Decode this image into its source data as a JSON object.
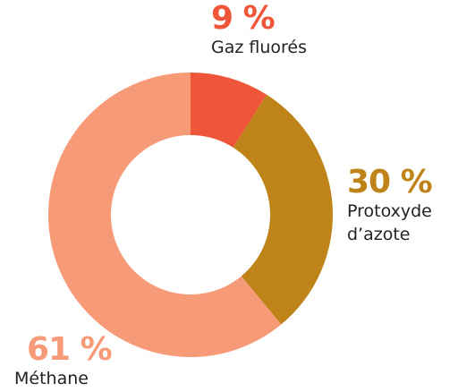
{
  "chart_data": {
    "type": "donut",
    "categories": [
      "Gaz fluorés",
      "Protoxyde d’azote",
      "Méthane"
    ],
    "values": [
      9,
      30,
      61
    ],
    "value_labels": [
      "9 %",
      "30 %",
      "61 %"
    ],
    "colors": [
      "#ef5538",
      "#bf8419",
      "#f79a78"
    ]
  }
}
